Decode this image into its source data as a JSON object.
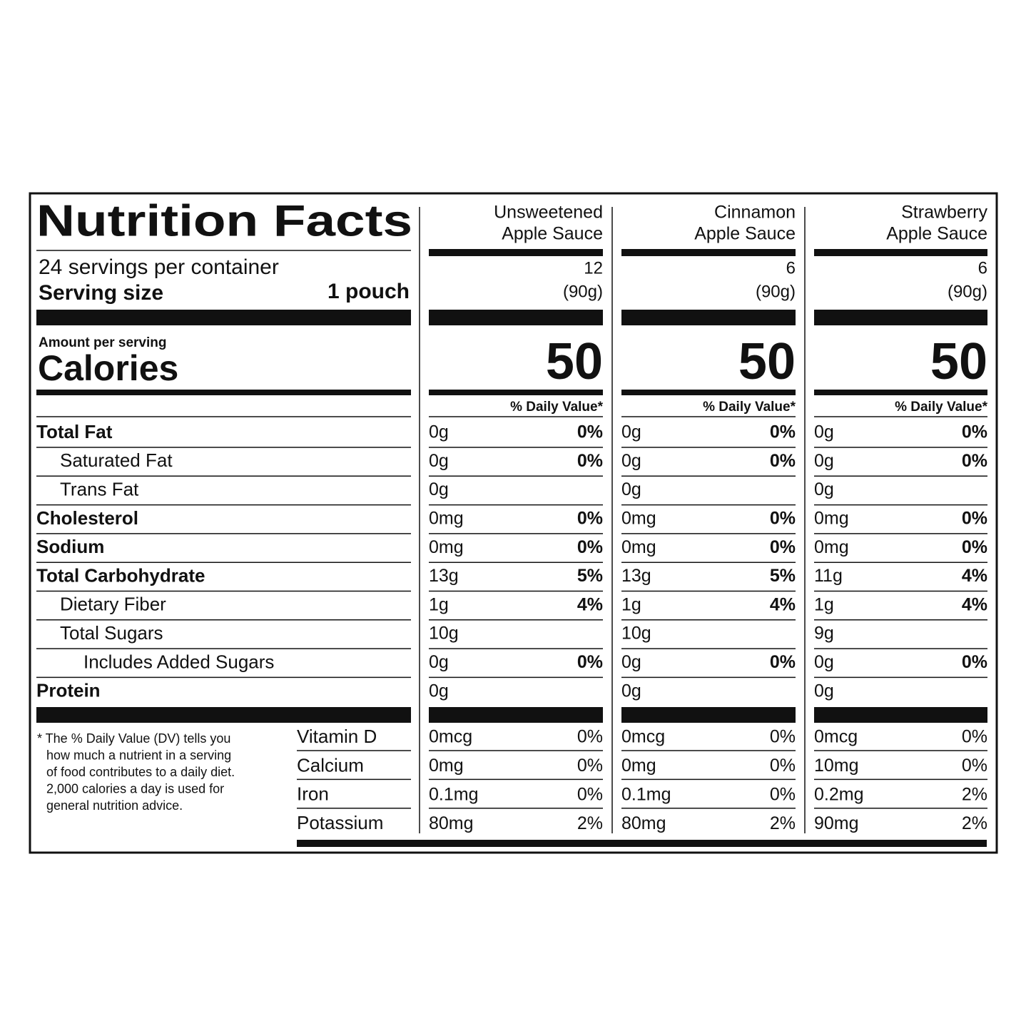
{
  "title": "Nutrition Facts",
  "servings_per_container": "24 servings per container",
  "serving_size_label": "Serving size",
  "serving_size": "1 pouch",
  "amount_per_serving": "Amount per serving",
  "calories_label": "Calories",
  "daily_value_header": "% Daily Value*",
  "nutrients": [
    {
      "label": "Total Fat",
      "bold": true,
      "indent": 0
    },
    {
      "label": "Saturated Fat",
      "bold": false,
      "indent": 1
    },
    {
      "label": "Trans Fat",
      "bold": false,
      "indent": 1
    },
    {
      "label": "Cholesterol",
      "bold": true,
      "indent": 0
    },
    {
      "label": "Sodium",
      "bold": true,
      "indent": 0
    },
    {
      "label": "Total Carbohydrate",
      "bold": true,
      "indent": 0
    },
    {
      "label": "Dietary Fiber",
      "bold": false,
      "indent": 1
    },
    {
      "label": "Total Sugars",
      "bold": false,
      "indent": 1
    },
    {
      "label": "Includes Added Sugars",
      "bold": false,
      "indent": 2
    },
    {
      "label": "Protein",
      "bold": true,
      "indent": 0
    }
  ],
  "vitamins": [
    "Vitamin D",
    "Calcium",
    "Iron",
    "Potassium"
  ],
  "footnote": [
    "* The % Daily Value (DV) tells you",
    "how much a nutrient in a serving",
    "of food contributes to a daily diet.",
    "2,000 calories a day is used for",
    "general nutrition advice."
  ],
  "products": [
    {
      "name": [
        "Unsweetened",
        "Apple Sauce"
      ],
      "servings": "12",
      "serving_weight": "(90g)",
      "calories": "50",
      "nutrients": [
        {
          "amount": "0g",
          "dv": "0%"
        },
        {
          "amount": "0g",
          "dv": "0%"
        },
        {
          "amount": "0g"
        },
        {
          "amount": "0mg",
          "dv": "0%"
        },
        {
          "amount": "0mg",
          "dv": "0%"
        },
        {
          "amount": "13g",
          "dv": "5%"
        },
        {
          "amount": "1g",
          "dv": "4%"
        },
        {
          "amount": "10g"
        },
        {
          "amount": "0g",
          "dv": "0%"
        },
        {
          "amount": "0g"
        }
      ],
      "vitamins": [
        {
          "amount": "0mcg",
          "dv": "0%"
        },
        {
          "amount": "0mg",
          "dv": "0%"
        },
        {
          "amount": "0.1mg",
          "dv": "0%"
        },
        {
          "amount": "80mg",
          "dv": "2%"
        }
      ]
    },
    {
      "name": [
        "Cinnamon",
        "Apple Sauce"
      ],
      "servings": "6",
      "serving_weight": "(90g)",
      "calories": "50",
      "nutrients": [
        {
          "amount": "0g",
          "dv": "0%"
        },
        {
          "amount": "0g",
          "dv": "0%"
        },
        {
          "amount": "0g"
        },
        {
          "amount": "0mg",
          "dv": "0%"
        },
        {
          "amount": "0mg",
          "dv": "0%"
        },
        {
          "amount": "13g",
          "dv": "5%"
        },
        {
          "amount": "1g",
          "dv": "4%"
        },
        {
          "amount": "10g"
        },
        {
          "amount": "0g",
          "dv": "0%"
        },
        {
          "amount": "0g"
        }
      ],
      "vitamins": [
        {
          "amount": "0mcg",
          "dv": "0%"
        },
        {
          "amount": "0mg",
          "dv": "0%"
        },
        {
          "amount": "0.1mg",
          "dv": "0%"
        },
        {
          "amount": "80mg",
          "dv": "2%"
        }
      ]
    },
    {
      "name": [
        "Strawberry",
        "Apple Sauce"
      ],
      "servings": "6",
      "serving_weight": "(90g)",
      "calories": "50",
      "nutrients": [
        {
          "amount": "0g",
          "dv": "0%"
        },
        {
          "amount": "0g",
          "dv": "0%"
        },
        {
          "amount": "0g"
        },
        {
          "amount": "0mg",
          "dv": "0%"
        },
        {
          "amount": "0mg",
          "dv": "0%"
        },
        {
          "amount": "11g",
          "dv": "4%"
        },
        {
          "amount": "1g",
          "dv": "4%"
        },
        {
          "amount": "9g"
        },
        {
          "amount": "0g",
          "dv": "0%"
        },
        {
          "amount": "0g"
        }
      ],
      "vitamins": [
        {
          "amount": "0mcg",
          "dv": "0%"
        },
        {
          "amount": "10mg",
          "dv": "0%"
        },
        {
          "amount": "0.2mg",
          "dv": "2%"
        },
        {
          "amount": "90mg",
          "dv": "2%"
        }
      ]
    }
  ]
}
